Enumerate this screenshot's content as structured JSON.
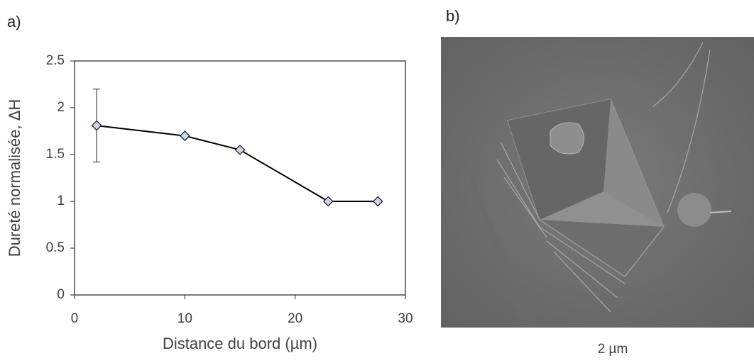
{
  "panels": {
    "a": {
      "label": "a)"
    },
    "b": {
      "label": "b)",
      "scale_bar": "2 µm"
    }
  },
  "chart_data": {
    "type": "line",
    "x_label": "Distance du bord (µm)",
    "y_label": "Dureté normalisée, ΔH",
    "series": [
      {
        "color": "#c9d6ea",
        "line_color": "#000000",
        "x": [
          2,
          10,
          15,
          23,
          27.5
        ],
        "values": [
          1.81,
          1.7,
          1.55,
          1.0,
          1.0
        ],
        "errors": [
          0.39,
          null,
          null,
          null,
          null
        ]
      }
    ],
    "xlim": [
      0,
      30
    ],
    "xticks": [
      0,
      10,
      20,
      30
    ],
    "ylim": [
      0,
      2.5
    ],
    "yticks": [
      0,
      0.5,
      1,
      1.5,
      2,
      2.5
    ],
    "grid": false
  }
}
